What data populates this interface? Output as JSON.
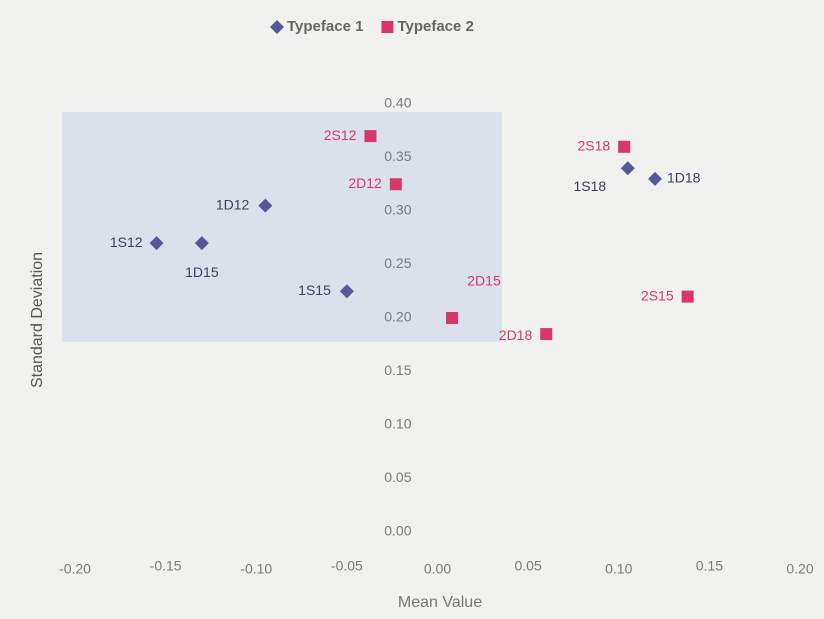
{
  "chart_data": {
    "type": "scatter",
    "x_label": "Mean Value",
    "y_label": "Standard Deviation",
    "xlim": [
      -0.2,
      0.2
    ],
    "ylim": [
      0,
      0.4
    ],
    "xticks": [
      {
        "value": -0.2,
        "label": "-0.20"
      },
      {
        "value": -0.15,
        "label": "-0.15"
      },
      {
        "value": -0.1,
        "label": "-0.10"
      },
      {
        "value": -0.05,
        "label": "-0.05"
      },
      {
        "value": 0,
        "label": "0.00"
      },
      {
        "value": 0.05,
        "label": "0.05"
      },
      {
        "value": 0.1,
        "label": "0.10"
      },
      {
        "value": 0.15,
        "label": "0.15"
      },
      {
        "value": 0.2,
        "label": "0.20"
      }
    ],
    "yticks": [
      {
        "value": 0,
        "label": "0.00"
      },
      {
        "value": 0.05,
        "label": "0.05"
      },
      {
        "value": 0.1,
        "label": "0.10"
      },
      {
        "value": 0.15,
        "label": "0.15"
      },
      {
        "value": 0.2,
        "label": "0.20"
      },
      {
        "value": 0.25,
        "label": "0.25"
      },
      {
        "value": 0.3,
        "label": "0.30"
      },
      {
        "value": 0.35,
        "label": "0.35"
      },
      {
        "value": 0.4,
        "label": "0.40"
      }
    ],
    "grid": false,
    "legend": "top",
    "series": [
      {
        "name": "Typeface 1",
        "color": "#55579a",
        "marker": "diamond",
        "labels": [
          "1S12",
          "1D15",
          "1D12",
          "1S15",
          "1S18",
          "1D18"
        ],
        "x": [
          -0.155,
          -0.13,
          -0.095,
          -0.05,
          0.105,
          0.12
        ],
        "values": [
          0.27,
          0.27,
          0.305,
          0.225,
          0.34,
          0.33
        ]
      },
      {
        "name": "Typeface 2",
        "color": "#d6386a",
        "marker": "square",
        "labels": [
          "2S12",
          "2D12",
          "2D15",
          "2D18",
          "2S18",
          "2S15"
        ],
        "x": [
          -0.037,
          -0.023,
          0.008,
          0.06,
          0.103,
          0.138
        ],
        "values": [
          0.37,
          0.325,
          0.2,
          0.185,
          0.36,
          0.22
        ]
      }
    ]
  }
}
